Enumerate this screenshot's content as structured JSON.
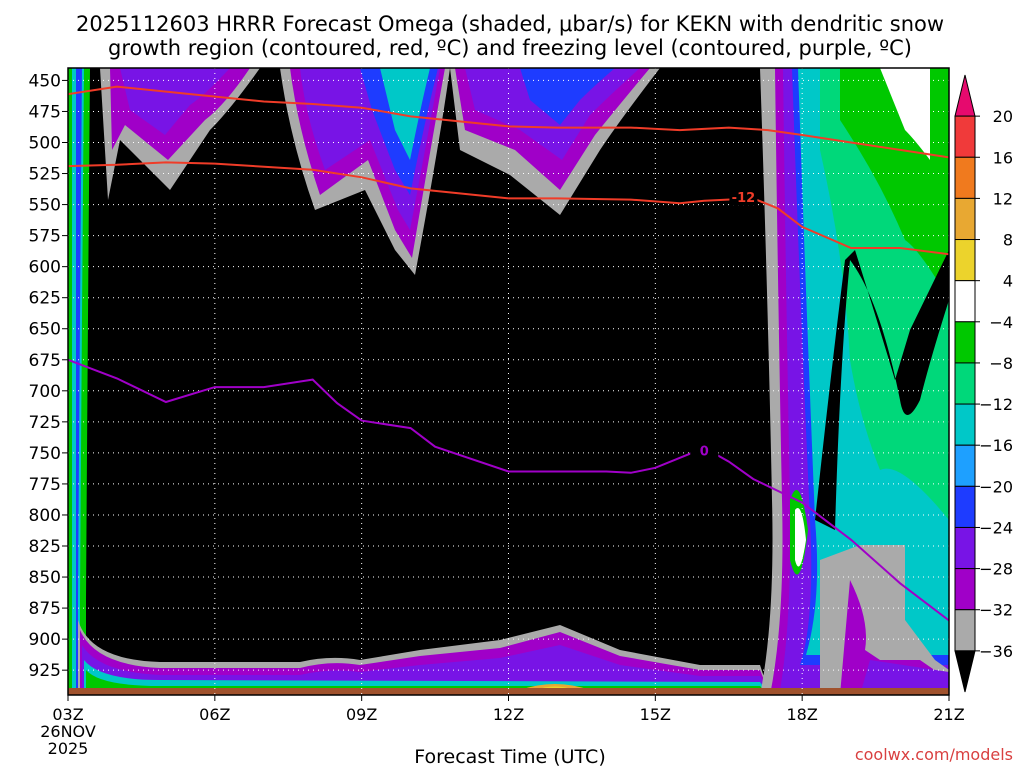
{
  "chart_data": {
    "type": "heatmap",
    "title_line1": "2025112603 HRRR Forecast Omega (shaded, μbar/s) for KEKN with dendritic snow",
    "title_line2": "growth region (contoured, red, ºC) and freezing level (contoured, purple, ºC)",
    "xlabel": "Forecast Time (UTC)",
    "ylabel": "",
    "credit": "coolwx.com/models",
    "x_ticks": [
      "03Z",
      "06Z",
      "09Z",
      "12Z",
      "15Z",
      "18Z",
      "21Z"
    ],
    "x_tick_hours": [
      3,
      6,
      9,
      12,
      15,
      18,
      21
    ],
    "x_date_line1": "26NOV",
    "x_date_line2": "2025",
    "y_ticks": [
      450,
      475,
      500,
      525,
      550,
      575,
      600,
      625,
      650,
      675,
      700,
      725,
      750,
      775,
      800,
      825,
      850,
      875,
      900,
      925
    ],
    "y_range_hpa": [
      440,
      945
    ],
    "y_reversed": true,
    "grid": "dotted",
    "colorbar": {
      "labels": [
        20,
        16,
        12,
        8,
        4,
        -4,
        -8,
        -12,
        -16,
        -20,
        -24,
        -28,
        -32,
        -36
      ],
      "colors": [
        "#e60a6e",
        "#f03a3a",
        "#f07a1e",
        "#e8a832",
        "#ecd32c",
        "#ffffff",
        "#00c800",
        "#00d87a",
        "#00c8c8",
        "#1ea0ff",
        "#1e3cff",
        "#7814e6",
        "#a000c8",
        "#aaaaaa",
        "#000000"
      ],
      "extend": "both"
    },
    "series": [
      {
        "name": "-12",
        "color": "#f03c28",
        "points": [
          [
            3.0,
            461
          ],
          [
            4.0,
            455
          ],
          [
            5.5,
            461
          ],
          [
            7.0,
            467
          ],
          [
            8.0,
            469
          ],
          [
            9.0,
            472
          ],
          [
            10.0,
            479
          ],
          [
            12.0,
            487
          ],
          [
            13.0,
            488
          ],
          [
            14.5,
            488
          ],
          [
            15.5,
            490
          ],
          [
            16.5,
            488
          ],
          [
            17.3,
            490
          ],
          [
            18.0,
            494
          ],
          [
            19.0,
            500
          ],
          [
            20.0,
            506
          ],
          [
            21.0,
            512
          ]
        ]
      },
      {
        "name": "-12",
        "color": "#f03c28",
        "points": [
          [
            3.0,
            519
          ],
          [
            4.0,
            518
          ],
          [
            5.0,
            516
          ],
          [
            6.0,
            517
          ],
          [
            8.0,
            522
          ],
          [
            9.0,
            528
          ],
          [
            10.0,
            537
          ],
          [
            12.0,
            545
          ],
          [
            13.0,
            545
          ],
          [
            14.5,
            546
          ],
          [
            15.5,
            549
          ],
          [
            16.0,
            547
          ],
          [
            17.0,
            545
          ],
          [
            17.5,
            553
          ],
          [
            18.0,
            568
          ],
          [
            19.0,
            585
          ],
          [
            20.0,
            585
          ],
          [
            21.0,
            590
          ]
        ]
      },
      {
        "name": "0",
        "color": "#a000c8",
        "points": [
          [
            3.0,
            675
          ],
          [
            4.0,
            690
          ],
          [
            5.0,
            709
          ],
          [
            6.0,
            697
          ],
          [
            7.0,
            697
          ],
          [
            8.0,
            691
          ],
          [
            8.5,
            710
          ],
          [
            9.0,
            724
          ],
          [
            10.0,
            730
          ],
          [
            10.5,
            745
          ],
          [
            12.0,
            765
          ],
          [
            13.0,
            765
          ],
          [
            14.0,
            765
          ],
          [
            14.5,
            766
          ],
          [
            15.0,
            762
          ],
          [
            16.0,
            746
          ],
          [
            16.5,
            757
          ],
          [
            17.0,
            771
          ],
          [
            18.0,
            790
          ],
          [
            19.0,
            820
          ],
          [
            20.0,
            855
          ],
          [
            21.0,
            885
          ]
        ]
      }
    ]
  }
}
